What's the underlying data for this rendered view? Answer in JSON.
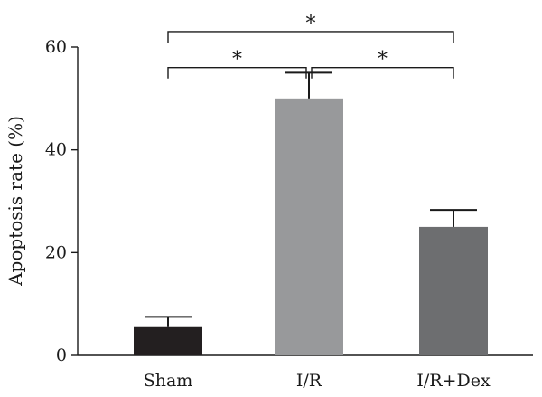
{
  "chart_data": {
    "type": "bar",
    "categories": [
      "Sham",
      "I/R",
      "I/R+Dex"
    ],
    "values": [
      5.5,
      50,
      25
    ],
    "errors": [
      2,
      5,
      3.3
    ],
    "colors": [
      "#231f20",
      "#98999b",
      "#6d6e70"
    ],
    "ylabel": "Apoptosis rate (%)",
    "xlabel": "",
    "ylim": [
      0,
      60
    ],
    "yticks": [
      "0",
      "20",
      "40",
      "60"
    ],
    "grid": false,
    "significance": [
      {
        "from": 0,
        "to": 1,
        "label": "*",
        "level": 56
      },
      {
        "from": 1,
        "to": 2,
        "label": "*",
        "level": 56
      },
      {
        "from": 0,
        "to": 2,
        "label": "*",
        "level": 63
      }
    ]
  }
}
